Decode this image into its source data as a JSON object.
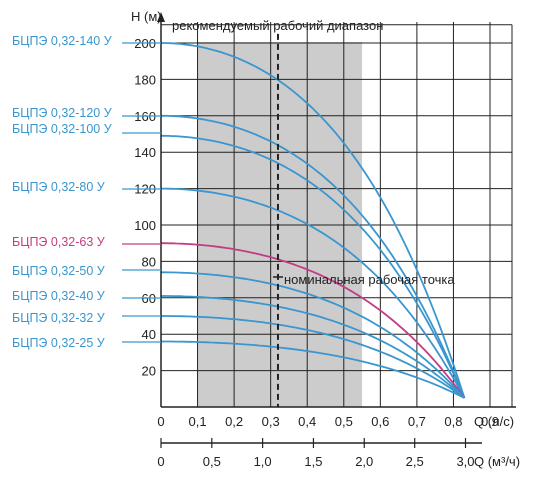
{
  "chart_data": {
    "type": "line",
    "y_axis": {
      "label": "H (м)",
      "ticks": [
        "20",
        "40",
        "60",
        "80",
        "100",
        "120",
        "140",
        "160",
        "180",
        "200"
      ],
      "range": [
        0,
        210
      ]
    },
    "x_axis": {
      "label": "Q (л/с)",
      "ticks": [
        "0",
        "0,1",
        "0,2",
        "0,3",
        "0,4",
        "0,5",
        "0,6",
        "0,7",
        "0,8",
        "0,9"
      ],
      "range": [
        0,
        0.95
      ]
    },
    "x2_axis": {
      "label": "Q (м³/ч)",
      "ticks": [
        "0",
        "0,5",
        "1,0",
        "1,5",
        "2,0",
        "2,5",
        "3,0"
      ],
      "ticks_lps": [
        0,
        0.139,
        0.278,
        0.417,
        0.556,
        0.694,
        0.833
      ]
    },
    "recommended_range": {
      "label": "рекомендуемый рабочий диапазон",
      "from": 0.1,
      "to": 0.55,
      "color": "#cccccc"
    },
    "nominal_point": {
      "label": "номинальная рабочая точка",
      "x": 0.32
    },
    "end_point": {
      "x": 0.83,
      "y": 5
    },
    "colors": {
      "main": "#3a96cf",
      "highlight": "#c33c84"
    },
    "series": [
      {
        "name": "БЦПЭ 0,32-140 У",
        "h0": 200,
        "color": "#3a96cf"
      },
      {
        "name": "БЦПЭ 0,32-120 У",
        "h0": 160,
        "color": "#3a96cf"
      },
      {
        "name": "БЦПЭ 0,32-100 У",
        "h0": 149,
        "color": "#3a96cf"
      },
      {
        "name": "БЦПЭ 0,32-80 У",
        "h0": 120,
        "color": "#3a96cf"
      },
      {
        "name": "БЦПЭ 0,32-63 У",
        "h0": 90,
        "color": "#c33c84"
      },
      {
        "name": "БЦПЭ 0,32-50 У",
        "h0": 74,
        "color": "#3a96cf"
      },
      {
        "name": "БЦПЭ 0,32-40 У",
        "h0": 61,
        "color": "#3a96cf"
      },
      {
        "name": "БЦПЭ 0,32-32 У",
        "h0": 50,
        "color": "#3a96cf"
      },
      {
        "name": "БЦПЭ 0,32-25 У",
        "h0": 36,
        "color": "#3a96cf"
      }
    ]
  }
}
